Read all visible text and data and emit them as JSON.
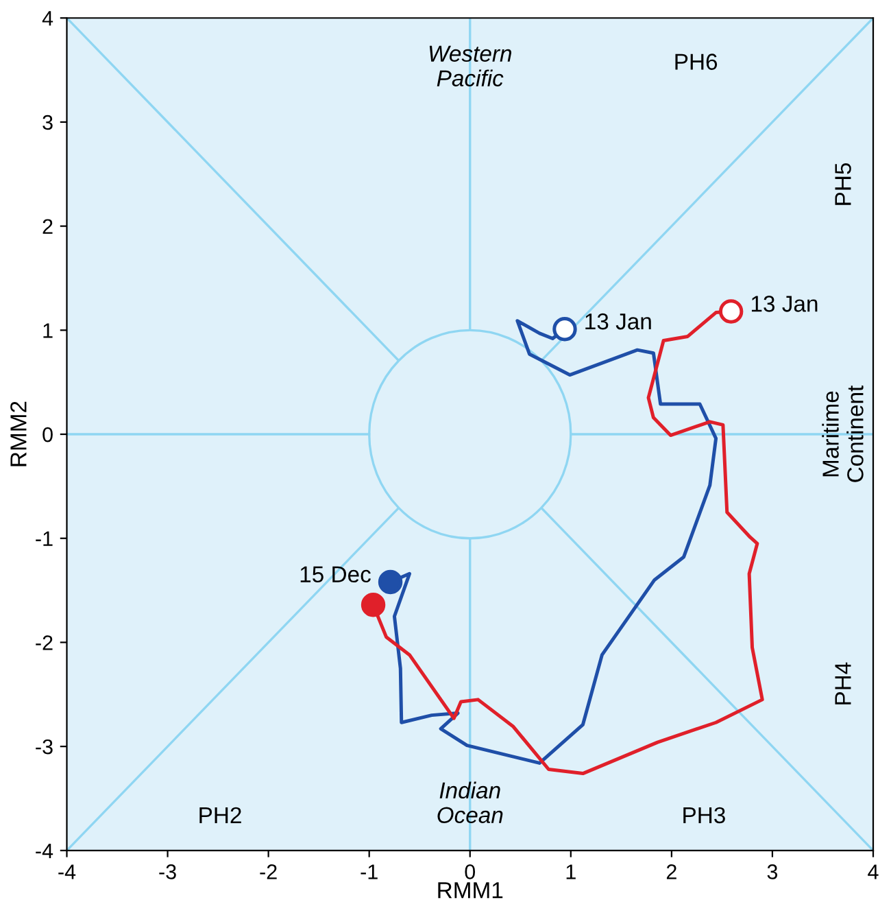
{
  "chart_data": {
    "type": "line",
    "xlabel": "RMM1",
    "ylabel": "RMM2",
    "xlim": [
      -4,
      4
    ],
    "ylim": [
      -4,
      4
    ],
    "xticks": [
      -4,
      -3,
      -2,
      -1,
      0,
      1,
      2,
      3,
      4
    ],
    "yticks": [
      -4,
      -3,
      -2,
      -1,
      0,
      1,
      2,
      3,
      4
    ],
    "grid": false,
    "legend": false,
    "line_style": "solid",
    "series": [
      {
        "color": "#8fd6f2",
        "x": [
          -4,
          -1
        ],
        "values": [
          0,
          0
        ]
      },
      {
        "color": "#8fd6f2",
        "x": [
          1,
          4
        ],
        "values": [
          0,
          0
        ]
      },
      {
        "color": "#8fd6f2",
        "x": [
          0,
          0
        ],
        "values": [
          -4,
          -1
        ]
      },
      {
        "color": "#8fd6f2",
        "x": [
          0,
          0
        ],
        "values": [
          1,
          4
        ]
      },
      {
        "color": "#8fd6f2",
        "x": [
          -4,
          -0.71
        ],
        "values": [
          -4,
          -0.71
        ]
      },
      {
        "color": "#8fd6f2",
        "x": [
          0.71,
          4
        ],
        "values": [
          0.71,
          4
        ]
      },
      {
        "color": "#8fd6f2",
        "x": [
          -4,
          -0.71
        ],
        "values": [
          4,
          0.71
        ]
      },
      {
        "color": "#8fd6f2",
        "x": [
          0.71,
          4
        ],
        "values": [
          -0.71,
          -4
        ]
      },
      {
        "color": "#1f4fa8",
        "x": [
          -0.79,
          -0.6,
          -0.75,
          -0.69,
          -0.68,
          -0.38,
          -0.12,
          -0.29,
          -0.03,
          0.69,
          1.12,
          1.31,
          1.83,
          2.12,
          2.38,
          2.44,
          2.28,
          1.89,
          1.82,
          1.66,
          0.99,
          0.59,
          0.47,
          0.69,
          0.82,
          0.94
        ],
        "values": [
          -1.42,
          -1.34,
          -1.75,
          -2.25,
          -2.77,
          -2.7,
          -2.68,
          -2.83,
          -2.99,
          -3.16,
          -2.79,
          -2.12,
          -1.4,
          -1.18,
          -0.49,
          -0.04,
          0.29,
          0.29,
          0.78,
          0.81,
          0.57,
          0.77,
          1.09,
          0.97,
          0.92,
          1.01
        ]
      },
      {
        "color": "#e0202a",
        "x": [
          -0.96,
          -0.83,
          -0.6,
          -0.16,
          -0.09,
          0.08,
          0.43,
          0.78,
          1.12,
          1.86,
          2.44,
          2.9,
          2.8,
          2.77,
          2.85,
          2.78,
          2.55,
          2.51,
          2.38,
          1.99,
          1.82,
          1.77,
          1.92,
          2.16,
          2.44,
          2.59
        ],
        "values": [
          -1.64,
          -1.95,
          -2.12,
          -2.73,
          -2.57,
          -2.55,
          -2.81,
          -3.22,
          -3.26,
          -2.96,
          -2.77,
          -2.55,
          -2.05,
          -1.34,
          -1.05,
          -0.99,
          -0.75,
          0.09,
          0.12,
          -0.01,
          0.16,
          0.35,
          0.9,
          0.94,
          1.17,
          1.18
        ]
      },
      {
        "type": "scatter",
        "marker": "circle",
        "color": "#1f4fa8",
        "x": [
          -0.79,
          0.94
        ],
        "values": [
          -1.42,
          1.01
        ]
      },
      {
        "type": "scatter",
        "marker": "circle",
        "color": "#e0202a",
        "x": [
          -0.96,
          2.59
        ],
        "values": [
          -1.64,
          1.18
        ]
      }
    ],
    "annotations": [
      {
        "text": "15 Dec",
        "x": -0.79,
        "y": -1.42
      },
      {
        "text": "13 Jan",
        "x": 0.94,
        "y": 1.01
      },
      {
        "text": "13 Jan",
        "x": 2.59,
        "y": 1.18
      },
      "Western\nPacific",
      "Indian\nOcean",
      "Maritime\nContinent",
      "PH6",
      "PH5",
      "PH4",
      "PH3",
      "PH2"
    ]
  }
}
